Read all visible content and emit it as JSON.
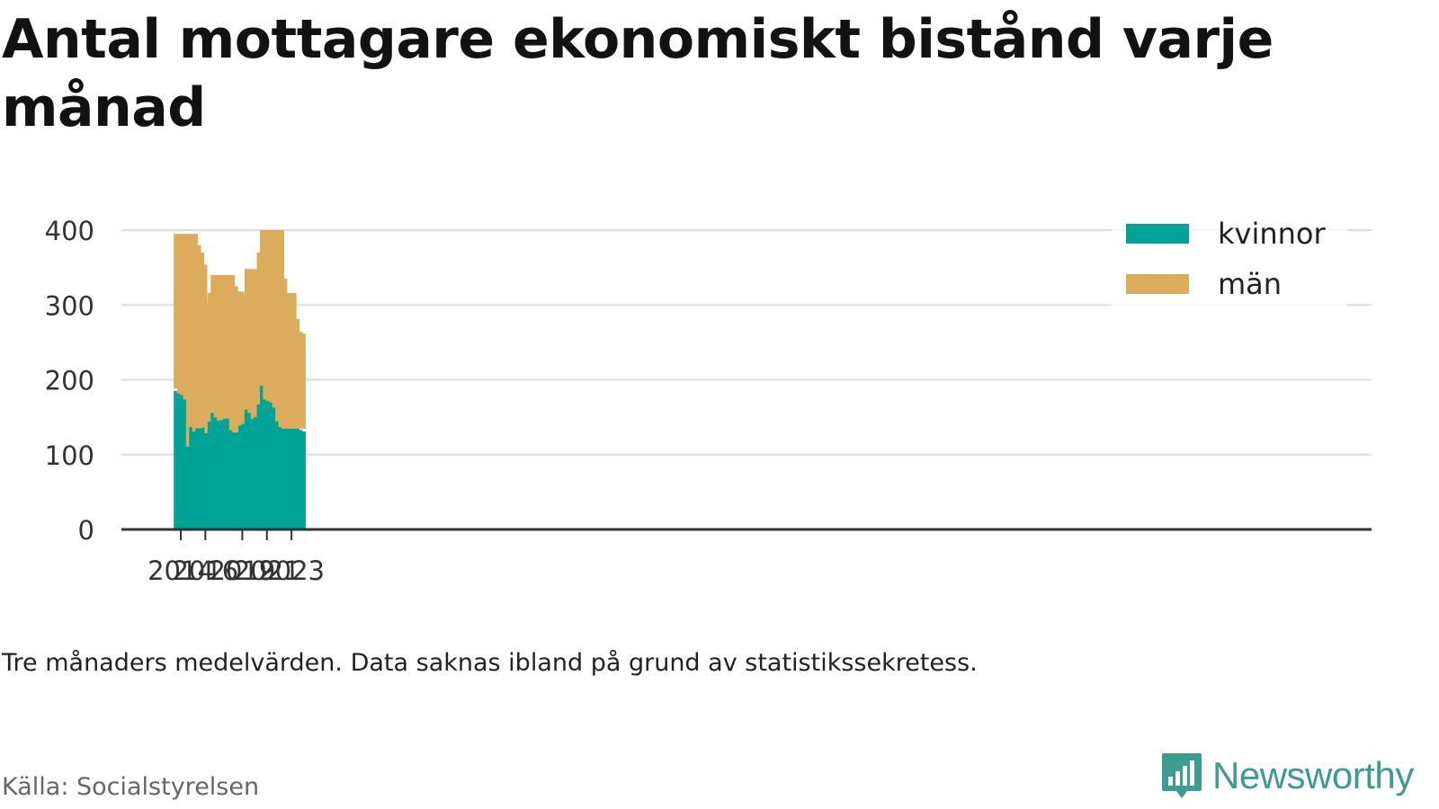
{
  "title": "Antal mottagare ekonomiskt bistånd varje månad",
  "note": "Tre månaders medelvärden. Data saknas ibland på grund av statistikssekretess.",
  "source": "Källa: Socialstyrelsen",
  "brand": "Newsworthy",
  "colors": {
    "kvinnor": "#00a397",
    "man": "#dbac5b",
    "grid": "#dddddd",
    "axis": "#333333",
    "brand": "#3d9b8f"
  },
  "chart_data": {
    "type": "bar",
    "stacked": true,
    "title": "Antal mottagare ekonomiskt bistånd varje månad",
    "xlabel": "",
    "ylabel": "",
    "ylim": [
      0,
      400
    ],
    "yticks": [
      0,
      100,
      200,
      300,
      400
    ],
    "xticks": [
      "2014",
      "2016",
      "2019",
      "2021",
      "2023"
    ],
    "grid": true,
    "legend_position": "top-right",
    "categories": [
      "2014-06",
      "2014-09",
      "2014-12",
      "2015-03",
      "2015-06",
      "2015-09",
      "2015-12",
      "2016-03",
      "2016-06",
      "2016-09",
      "2016-12",
      "2017-03",
      "2017-06",
      "2017-09",
      "2017-12",
      "2018-03",
      "2018-06",
      "2018-09",
      "2018-12",
      "2019-03",
      "2019-06",
      "2019-09",
      "2019-12",
      "2020-03",
      "2020-06",
      "2020-09",
      "2020-12",
      "2021-03",
      "2021-06",
      "2021-09",
      "2021-12",
      "2022-03",
      "2022-06",
      "2022-09",
      "2022-12",
      "2023-03",
      "2023-06"
    ],
    "series": [
      {
        "name": "kvinnor",
        "values": [
          185,
          178,
          176,
          170,
          107,
          137,
          127,
          135,
          132,
          136,
          125,
          144,
          156,
          146,
          142,
          146,
          148,
          148,
          129,
          126,
          129,
          139,
          141,
          160,
          152,
          144,
          150,
          167,
          192,
          170,
          168,
          166,
          159,
          141,
          133,
          131,
          null
        ]
      },
      {
        "name": "män",
        "values": [
          210,
          202,
          194,
          184,
          135,
          159,
          154,
          162,
          157,
          166,
          151,
          172,
          184,
          179,
          171,
          172,
          164,
          164,
          176,
          185,
          184,
          174,
          156,
          188,
          183,
          183,
          186,
          203,
          208,
          165,
          146,
          144,
          157,
          140,
          131,
          131,
          null
        ]
      }
    ]
  }
}
